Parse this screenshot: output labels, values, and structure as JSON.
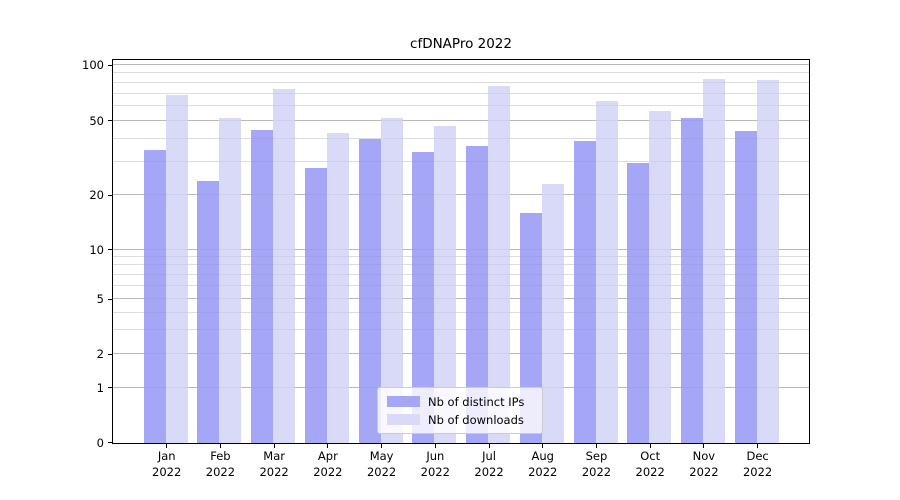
{
  "chart_data": {
    "type": "bar",
    "title": "cfDNAPro 2022",
    "categories": [
      "Jan",
      "Feb",
      "Mar",
      "Apr",
      "May",
      "Jun",
      "Jul",
      "Aug",
      "Sep",
      "Oct",
      "Nov",
      "Dec"
    ],
    "year_label": "2022",
    "series": [
      {
        "name": "Nb of distinct IPs",
        "color": "#a6a6f6",
        "values": [
          35,
          24,
          45,
          28,
          40,
          34,
          37,
          16,
          39,
          30,
          52,
          44
        ]
      },
      {
        "name": "Nb of downloads",
        "color": "#d9d9f8",
        "values": [
          69,
          52,
          75,
          43,
          52,
          47,
          77,
          23,
          64,
          57,
          85,
          84
        ]
      }
    ],
    "yaxis": {
      "scale": "symlog",
      "major_ticks": [
        0,
        1,
        2,
        5,
        10,
        20,
        50,
        100
      ],
      "minor_gridlines": [
        3,
        4,
        6,
        7,
        8,
        9,
        30,
        40,
        60,
        70,
        80,
        90
      ],
      "range_top": 107
    },
    "xlabel": "",
    "ylabel": "",
    "grid": true,
    "legend_position": "bottom-center"
  }
}
